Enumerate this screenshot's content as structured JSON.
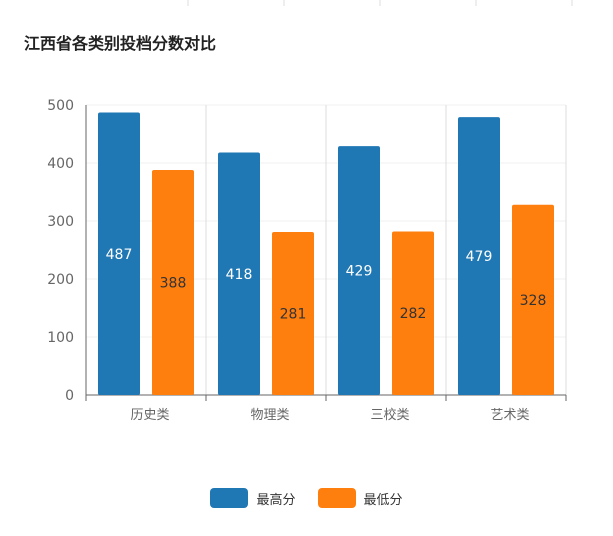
{
  "chart_data": {
    "type": "bar",
    "title": "江西省各类别投档分数对比",
    "categories": [
      "历史类",
      "物理类",
      "三校类",
      "艺术类"
    ],
    "series": [
      {
        "name": "最高分",
        "values": [
          487,
          418,
          429,
          479
        ],
        "color": "#1f77b4"
      },
      {
        "name": "最低分",
        "values": [
          388,
          281,
          282,
          328
        ],
        "color": "#ff7f0e"
      }
    ],
    "xlabel": "",
    "ylabel": "",
    "ylim": [
      0,
      500
    ],
    "yticks": [
      0,
      100,
      200,
      300,
      400,
      500
    ],
    "grid": true,
    "legend": "bottom-center",
    "data_label_colors": [
      "#ffffff",
      "#333333"
    ]
  }
}
